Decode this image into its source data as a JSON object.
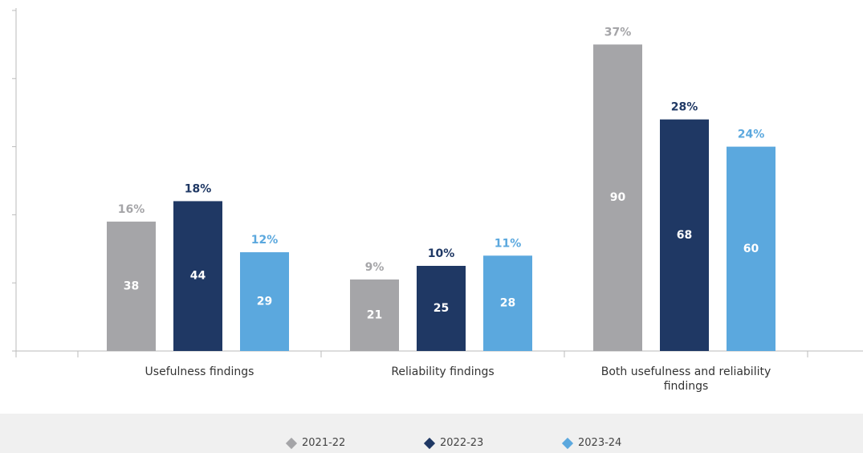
{
  "chart_data": {
    "type": "bar",
    "categories": [
      "Usefulness findings",
      "Reliability findings",
      "Both usefulness and reliability findings"
    ],
    "series": [
      {
        "name": "2021-22",
        "color": "#a5a5a8",
        "values": [
          38,
          21,
          90
        ],
        "percent_labels": [
          "16%",
          "9%",
          "37%"
        ]
      },
      {
        "name": "2022-23",
        "color": "#1f3864",
        "values": [
          44,
          25,
          68
        ],
        "percent_labels": [
          "18%",
          "10%",
          "28%"
        ]
      },
      {
        "name": "2023-24",
        "color": "#5ba8de",
        "values": [
          29,
          28,
          60
        ],
        "percent_labels": [
          "12%",
          "11%",
          "24%"
        ]
      }
    ],
    "ylim": [
      0,
      100
    ],
    "yticks": [
      0,
      20,
      40,
      60,
      80,
      100
    ],
    "legend": "bottom"
  }
}
